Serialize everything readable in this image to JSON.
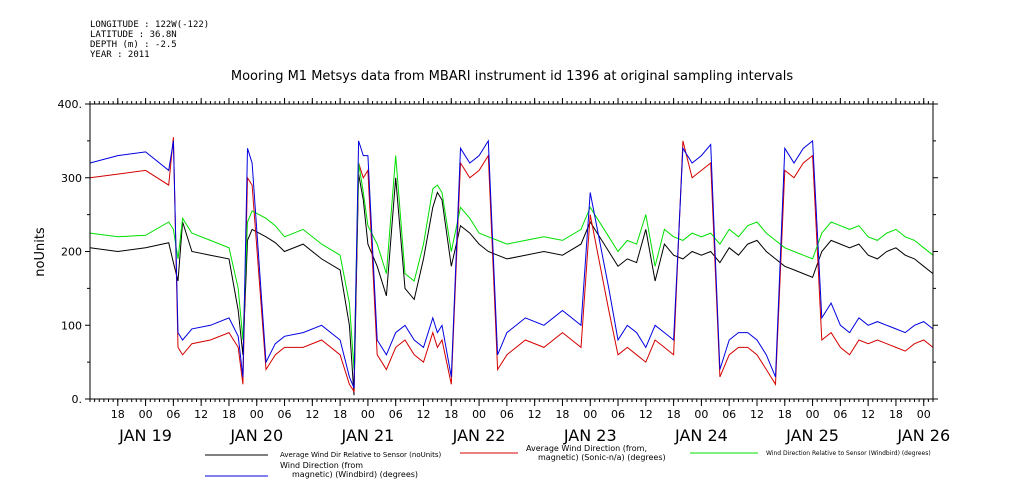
{
  "meta": {
    "longitude": "LONGITUDE : 122W(-122)",
    "latitude": "LATITUDE : 36.8N",
    "depth": "DEPTH (m) : -2.5",
    "year": "YEAR : 2011"
  },
  "chart_data": {
    "type": "line",
    "title": "Mooring M1 Metsys data from MBARI instrument id 1396 at original sampling intervals",
    "ylabel": "noUnits",
    "xlabel": "",
    "ylim": [
      0,
      400
    ],
    "yticks": [
      0,
      100,
      200,
      300,
      400
    ],
    "ytick_labels": [
      "0.",
      "100",
      "200",
      "300",
      "400."
    ],
    "xlim_hours": [
      0,
      182
    ],
    "hour_ticks": [
      {
        "h": 6,
        "label": "18"
      },
      {
        "h": 12,
        "label": "00"
      },
      {
        "h": 18,
        "label": "06"
      },
      {
        "h": 24,
        "label": "12"
      },
      {
        "h": 30,
        "label": "18"
      },
      {
        "h": 36,
        "label": "00"
      },
      {
        "h": 42,
        "label": "06"
      },
      {
        "h": 48,
        "label": "12"
      },
      {
        "h": 54,
        "label": "18"
      },
      {
        "h": 60,
        "label": "00"
      },
      {
        "h": 66,
        "label": "06"
      },
      {
        "h": 72,
        "label": "12"
      },
      {
        "h": 78,
        "label": "18"
      },
      {
        "h": 84,
        "label": "00"
      },
      {
        "h": 90,
        "label": "06"
      },
      {
        "h": 96,
        "label": "12"
      },
      {
        "h": 102,
        "label": "18"
      },
      {
        "h": 108,
        "label": "00"
      },
      {
        "h": 114,
        "label": "06"
      },
      {
        "h": 120,
        "label": "12"
      },
      {
        "h": 126,
        "label": "18"
      },
      {
        "h": 132,
        "label": "00"
      },
      {
        "h": 138,
        "label": "06"
      },
      {
        "h": 144,
        "label": "12"
      },
      {
        "h": 150,
        "label": "18"
      },
      {
        "h": 156,
        "label": "00"
      },
      {
        "h": 162,
        "label": "06"
      },
      {
        "h": 168,
        "label": "12"
      },
      {
        "h": 174,
        "label": "18"
      },
      {
        "h": 180,
        "label": "00"
      }
    ],
    "day_labels": [
      {
        "h": 12,
        "label": "JAN 19"
      },
      {
        "h": 36,
        "label": "JAN 20"
      },
      {
        "h": 60,
        "label": "JAN 21"
      },
      {
        "h": 84,
        "label": "JAN 22"
      },
      {
        "h": 108,
        "label": "JAN 23"
      },
      {
        "h": 132,
        "label": "JAN 24"
      },
      {
        "h": 156,
        "label": "JAN 25"
      },
      {
        "h": 180,
        "label": "JAN 26"
      }
    ],
    "series": [
      {
        "name": "Average Wind Dir Relative to Sensor (noUnits)",
        "color": "#000000",
        "x": [
          0,
          6,
          12,
          17,
          18,
          19,
          20,
          22,
          26,
          30,
          32,
          33,
          34,
          35,
          38,
          40,
          42,
          46,
          50,
          54,
          56,
          57,
          58,
          59,
          60,
          62,
          64,
          66,
          68,
          70,
          72,
          74,
          75,
          76,
          78,
          80,
          82,
          84,
          86,
          88,
          90,
          94,
          98,
          102,
          106,
          108,
          112,
          114,
          116,
          118,
          120,
          122,
          124,
          126,
          128,
          130,
          132,
          134,
          136,
          138,
          140,
          142,
          144,
          146,
          148,
          150,
          152,
          154,
          156,
          158,
          160,
          162,
          164,
          166,
          168,
          170,
          172,
          174,
          176,
          178,
          180,
          182
        ],
        "y": [
          205,
          200,
          205,
          212,
          185,
          160,
          240,
          200,
          195,
          190,
          120,
          60,
          215,
          230,
          220,
          212,
          200,
          210,
          190,
          175,
          100,
          5,
          305,
          270,
          210,
          180,
          140,
          300,
          150,
          135,
          190,
          260,
          280,
          270,
          180,
          235,
          225,
          210,
          200,
          195,
          190,
          195,
          200,
          195,
          210,
          240,
          200,
          180,
          190,
          185,
          230,
          160,
          210,
          195,
          190,
          200,
          195,
          200,
          185,
          205,
          195,
          210,
          215,
          200,
          190,
          180,
          175,
          170,
          165,
          200,
          215,
          210,
          205,
          210,
          195,
          190,
          200,
          205,
          195,
          190,
          180,
          170
        ]
      },
      {
        "name": "Average Wind Direction (from, magnetic) (Sonic-n/a) (degrees)",
        "color": "#d40000",
        "x": [
          0,
          6,
          12,
          17,
          18,
          19,
          20,
          22,
          26,
          30,
          32,
          33,
          34,
          35,
          38,
          40,
          42,
          46,
          50,
          54,
          56,
          57,
          58,
          59,
          60,
          62,
          64,
          66,
          68,
          70,
          72,
          74,
          75,
          76,
          78,
          80,
          82,
          84,
          86,
          88,
          90,
          94,
          98,
          102,
          106,
          108,
          112,
          114,
          116,
          118,
          120,
          122,
          124,
          126,
          128,
          130,
          132,
          134,
          136,
          138,
          140,
          142,
          144,
          146,
          148,
          150,
          152,
          154,
          156,
          158,
          160,
          162,
          164,
          166,
          168,
          170,
          172,
          174,
          176,
          178,
          180,
          182
        ],
        "y": [
          300,
          305,
          310,
          290,
          355,
          70,
          60,
          75,
          80,
          90,
          70,
          20,
          300,
          290,
          40,
          60,
          70,
          70,
          80,
          60,
          20,
          10,
          320,
          300,
          310,
          60,
          40,
          70,
          80,
          60,
          50,
          90,
          70,
          80,
          20,
          320,
          300,
          310,
          330,
          40,
          60,
          80,
          70,
          90,
          70,
          250,
          120,
          60,
          70,
          60,
          50,
          80,
          70,
          60,
          350,
          300,
          310,
          320,
          30,
          60,
          70,
          70,
          60,
          40,
          20,
          310,
          300,
          320,
          330,
          80,
          90,
          70,
          60,
          80,
          75,
          80,
          75,
          70,
          65,
          75,
          80,
          70
        ]
      },
      {
        "name": "Wind Direction Relative to Sensor (Windbird) (degrees)",
        "color": "#00e000",
        "x": [
          0,
          6,
          12,
          17,
          18,
          19,
          20,
          22,
          26,
          30,
          32,
          33,
          34,
          35,
          38,
          40,
          42,
          46,
          50,
          54,
          56,
          57,
          58,
          59,
          60,
          62,
          64,
          66,
          68,
          70,
          72,
          74,
          75,
          76,
          78,
          80,
          82,
          84,
          86,
          88,
          90,
          94,
          98,
          102,
          106,
          108,
          112,
          114,
          116,
          118,
          120,
          122,
          124,
          126,
          128,
          130,
          132,
          134,
          136,
          138,
          140,
          142,
          144,
          146,
          148,
          150,
          152,
          154,
          156,
          158,
          160,
          162,
          164,
          166,
          168,
          170,
          172,
          174,
          176,
          178,
          180,
          182
        ],
        "y": [
          225,
          220,
          222,
          240,
          230,
          190,
          245,
          225,
          215,
          205,
          150,
          80,
          240,
          255,
          245,
          235,
          220,
          230,
          210,
          195,
          130,
          40,
          320,
          280,
          235,
          210,
          170,
          330,
          170,
          160,
          210,
          285,
          290,
          280,
          200,
          260,
          245,
          225,
          220,
          215,
          210,
          215,
          220,
          215,
          230,
          260,
          220,
          200,
          215,
          210,
          250,
          180,
          230,
          220,
          215,
          225,
          220,
          225,
          210,
          230,
          220,
          235,
          240,
          225,
          215,
          205,
          200,
          195,
          190,
          225,
          240,
          235,
          230,
          235,
          220,
          215,
          225,
          230,
          220,
          215,
          205,
          195
        ]
      },
      {
        "name": "Wind Direction (from, magnetic) (Windbird) (degrees)",
        "color": "#0000e0",
        "x": [
          0,
          6,
          12,
          17,
          18,
          19,
          20,
          22,
          26,
          30,
          32,
          33,
          34,
          35,
          38,
          40,
          42,
          46,
          50,
          54,
          56,
          57,
          58,
          59,
          60,
          62,
          64,
          66,
          68,
          70,
          72,
          74,
          75,
          76,
          78,
          80,
          82,
          84,
          86,
          88,
          90,
          94,
          98,
          102,
          106,
          108,
          112,
          114,
          116,
          118,
          120,
          122,
          124,
          126,
          128,
          130,
          132,
          134,
          136,
          138,
          140,
          142,
          144,
          146,
          148,
          150,
          152,
          154,
          156,
          158,
          160,
          162,
          164,
          166,
          168,
          170,
          172,
          174,
          176,
          178,
          180,
          182
        ],
        "y": [
          320,
          330,
          335,
          310,
          350,
          90,
          80,
          95,
          100,
          110,
          85,
          30,
          340,
          320,
          50,
          75,
          85,
          90,
          100,
          80,
          30,
          15,
          350,
          330,
          330,
          80,
          60,
          90,
          100,
          80,
          70,
          110,
          90,
          100,
          30,
          340,
          320,
          330,
          350,
          60,
          90,
          110,
          100,
          120,
          100,
          280,
          150,
          80,
          100,
          90,
          70,
          100,
          90,
          80,
          340,
          320,
          330,
          345,
          40,
          80,
          90,
          90,
          80,
          60,
          30,
          340,
          320,
          340,
          350,
          110,
          130,
          100,
          90,
          110,
          100,
          105,
          100,
          95,
          90,
          100,
          105,
          95
        ]
      }
    ],
    "legend_placement": "bottom"
  }
}
